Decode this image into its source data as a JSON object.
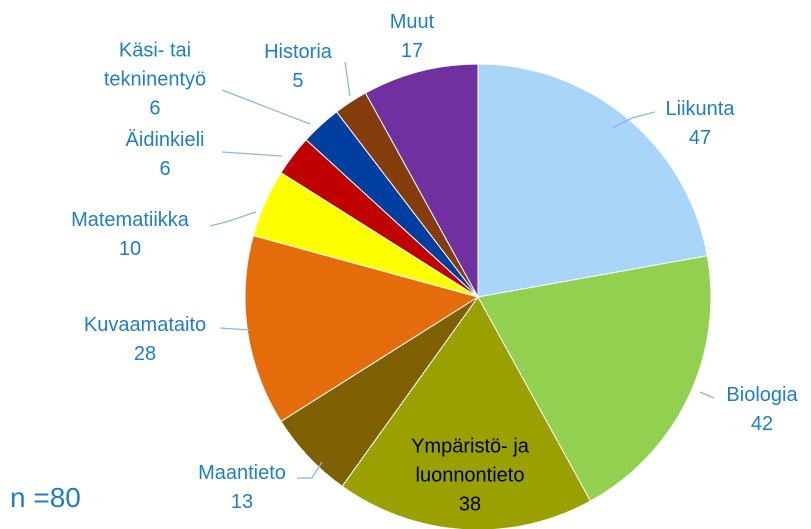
{
  "chart_data": {
    "type": "pie",
    "categories": [
      "Liikunta",
      "Biologia",
      "Ympäristö- ja\nluonnontieto",
      "Maantieto",
      "Kuvaamataito",
      "Matematiikka",
      "Äidinkieli",
      "Käsi- tai\ntekninentyö",
      "Historia",
      "Muut"
    ],
    "values": [
      47,
      42,
      38,
      13,
      28,
      10,
      6,
      6,
      5,
      17
    ],
    "colors": [
      "#a9d5f9",
      "#92d050",
      "#99a000",
      "#7f6000",
      "#e46c0a",
      "#ffff00",
      "#c00000",
      "#003fa0",
      "#843c0c",
      "#7030a0"
    ],
    "annotation": "n =80"
  }
}
